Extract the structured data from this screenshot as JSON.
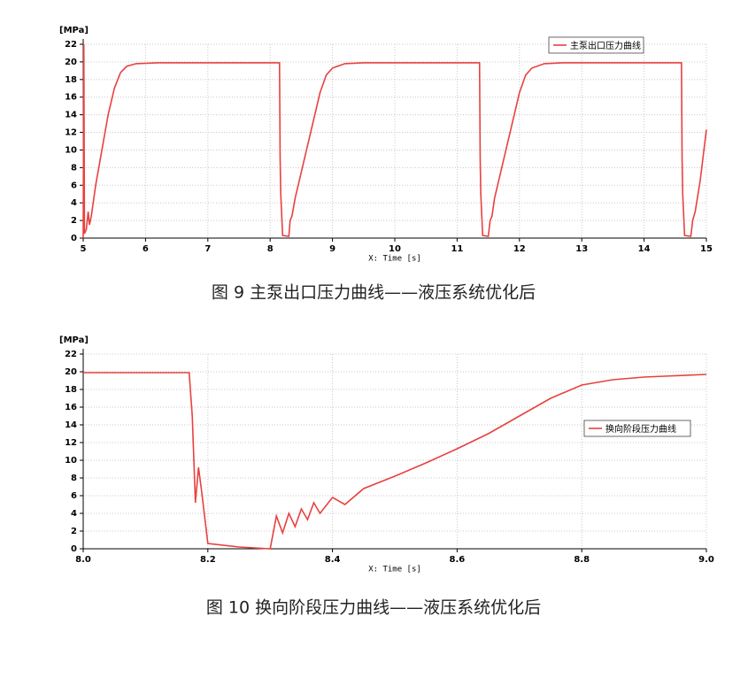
{
  "chart_data": [
    {
      "type": "line",
      "ylabel": "[MPa]",
      "xlabel": "X: Time [s]",
      "caption": "图 9 主泵出口压力曲线——液压系统优化后",
      "grid": true,
      "xlim": [
        5,
        15
      ],
      "ylim": [
        0,
        22
      ],
      "xticks": [
        5,
        6,
        7,
        8,
        9,
        10,
        11,
        12,
        13,
        14,
        15
      ],
      "yticks": [
        0,
        2,
        4,
        6,
        8,
        10,
        12,
        14,
        16,
        18,
        20,
        22
      ],
      "x": [
        5.0,
        5.01,
        5.02,
        5.05,
        5.08,
        5.1,
        5.13,
        5.2,
        5.3,
        5.4,
        5.5,
        5.6,
        5.7,
        5.85,
        6.2,
        8.15,
        8.16,
        8.17,
        8.2,
        8.3,
        8.32,
        8.35,
        8.4,
        8.5,
        8.6,
        8.7,
        8.8,
        8.9,
        9.0,
        9.2,
        9.5,
        11.36,
        11.37,
        11.38,
        11.41,
        11.5,
        11.53,
        11.56,
        11.6,
        11.7,
        11.8,
        11.9,
        12.0,
        12.1,
        12.2,
        12.4,
        12.7,
        14.6,
        14.61,
        14.62,
        14.65,
        14.75,
        14.78,
        14.82,
        14.9,
        15.0
      ],
      "series": [
        {
          "name": "主泵出口压力曲线",
          "color": "#e8413f",
          "values": [
            0,
            22,
            0.5,
            1,
            3,
            1.5,
            2.5,
            6,
            10,
            14,
            17,
            18.8,
            19.5,
            19.8,
            19.9,
            19.9,
            9,
            5,
            0.3,
            0.2,
            2,
            2.5,
            4.5,
            7.5,
            10.5,
            13.5,
            16.5,
            18.5,
            19.3,
            19.8,
            19.9,
            19.9,
            9,
            5,
            0.3,
            0.2,
            2,
            2.5,
            4.5,
            7.5,
            10.5,
            13.5,
            16.5,
            18.5,
            19.3,
            19.8,
            19.9,
            19.9,
            9,
            5,
            0.3,
            0.2,
            2,
            3,
            6.5,
            12.3
          ]
        }
      ]
    },
    {
      "type": "line",
      "ylabel": "[MPa]",
      "xlabel": "X: Time [s]",
      "caption": "图 10 换向阶段压力曲线——液压系统优化后",
      "grid": true,
      "xlim": [
        8,
        9
      ],
      "ylim": [
        0,
        22
      ],
      "xticks": [
        {
          "value": 8,
          "label": "8.0"
        },
        8.2,
        8.4,
        8.6,
        8.8,
        {
          "value": 9,
          "label": "9.0"
        }
      ],
      "yticks": [
        0,
        2,
        4,
        6,
        8,
        10,
        12,
        14,
        16,
        18,
        20,
        22
      ],
      "x": [
        8.0,
        8.17,
        8.175,
        8.18,
        8.185,
        8.19,
        8.2,
        8.25,
        8.3,
        8.31,
        8.32,
        8.33,
        8.34,
        8.35,
        8.36,
        8.37,
        8.38,
        8.4,
        8.42,
        8.45,
        8.5,
        8.55,
        8.6,
        8.65,
        8.7,
        8.75,
        8.8,
        8.85,
        8.9,
        9.0
      ],
      "series": [
        {
          "name": "换向阶段压力曲线",
          "color": "#e8413f",
          "values": [
            19.9,
            19.9,
            15,
            5.2,
            9.2,
            6.5,
            0.6,
            0.2,
            0,
            3.7,
            1.8,
            4,
            2.5,
            4.5,
            3.3,
            5.2,
            4,
            5.8,
            5,
            6.8,
            8.2,
            9.7,
            11.3,
            13,
            15,
            17,
            18.5,
            19.1,
            19.4,
            19.7
          ]
        }
      ]
    }
  ]
}
